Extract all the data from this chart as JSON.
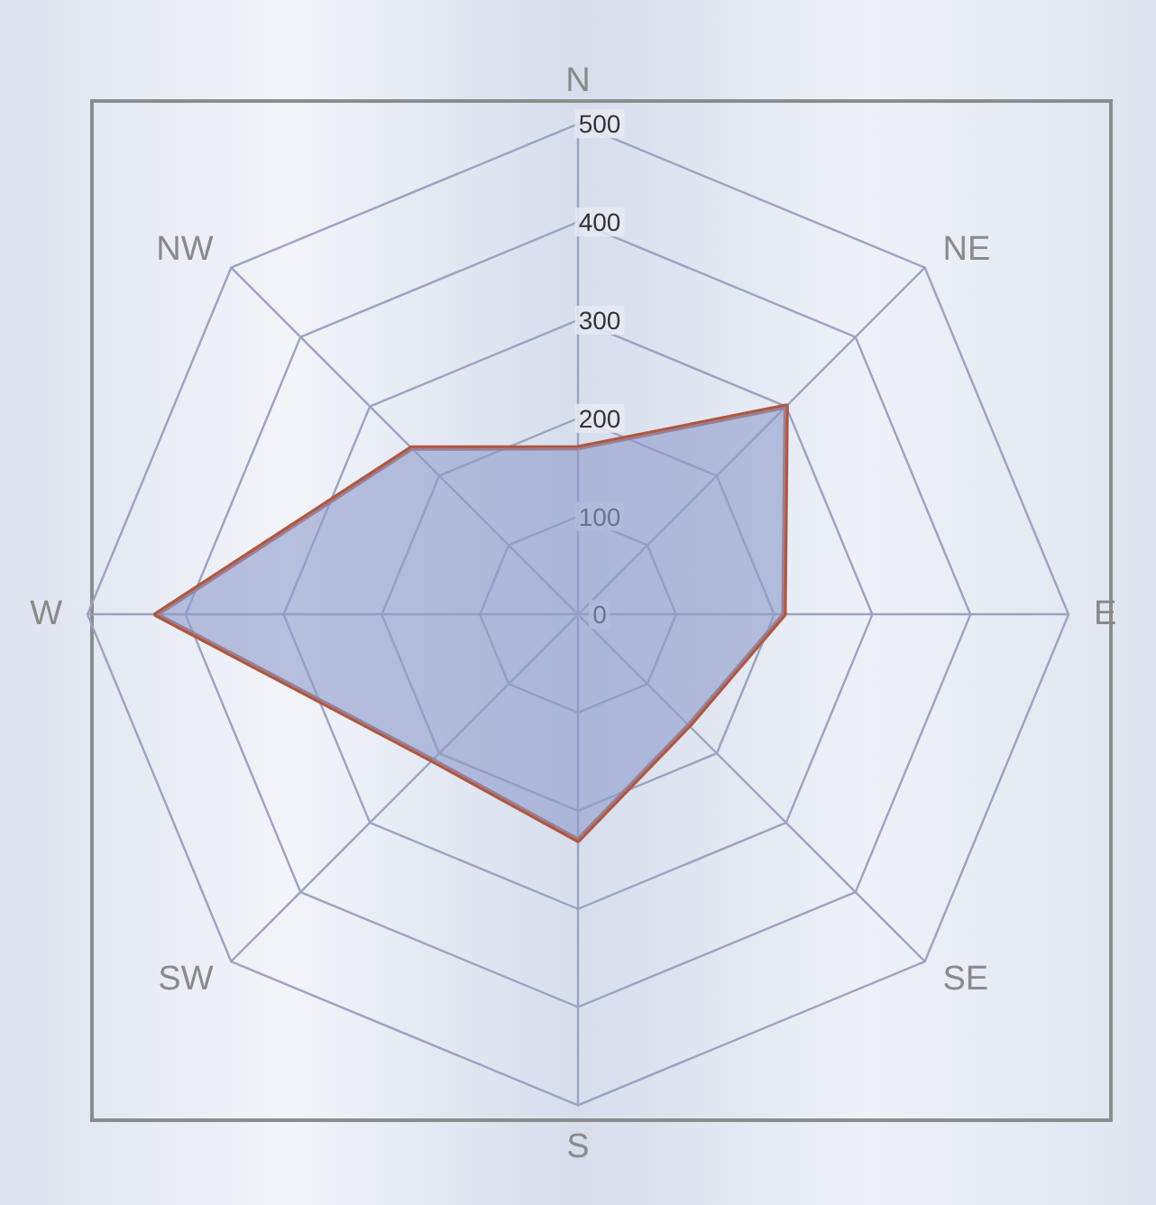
{
  "chart_data": {
    "type": "radar",
    "categories": [
      "N",
      "NE",
      "E",
      "SE",
      "S",
      "SW",
      "W",
      "NW"
    ],
    "series": [
      {
        "color": "#b0563f",
        "values": [
          170,
          300,
          210,
          160,
          230,
          210,
          430,
          240
        ]
      }
    ],
    "ylim": [
      0,
      500
    ],
    "yticks": [
      0,
      100,
      200,
      300,
      400,
      500
    ],
    "grid": true,
    "marker": "none"
  }
}
